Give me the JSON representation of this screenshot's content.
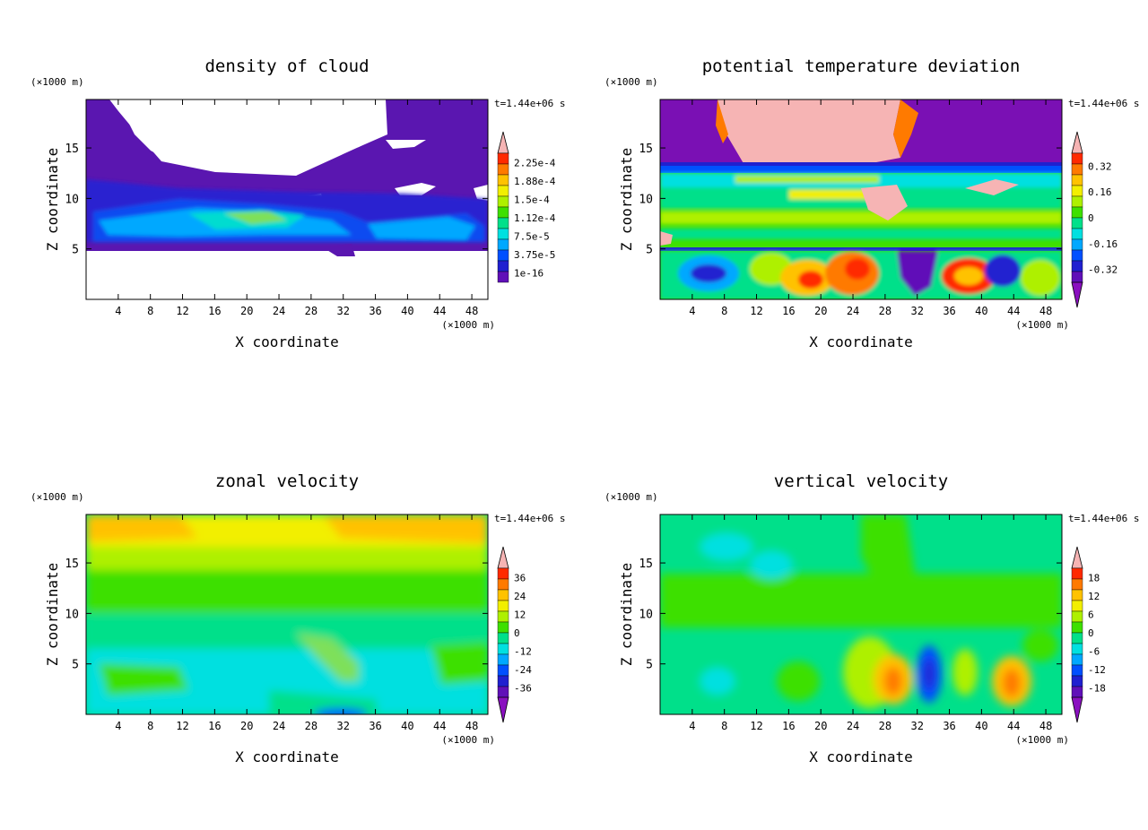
{
  "chart_data": [
    {
      "type": "heatmap",
      "title": "density of cloud",
      "xlabel": "X coordinate",
      "ylabel": "Z coordinate",
      "x_unit": "(×1000 m)",
      "y_unit": "(×1000 m)",
      "time_label": "t=1.44e+06 s",
      "xlim": [
        0,
        50
      ],
      "ylim": [
        0,
        19.8
      ],
      "xticks": [
        4,
        8,
        12,
        16,
        20,
        24,
        28,
        32,
        36,
        40,
        44,
        48
      ],
      "yticks": [
        5,
        10,
        15
      ],
      "colorbar": {
        "labels": [
          "2.25e-4",
          "1.88e-4",
          "1.5e-4",
          "1.12e-4",
          "7.5e-5",
          "3.75e-5",
          "1e-16"
        ],
        "colors": [
          "#f6b4b4",
          "#ff2a00",
          "#ff7a00",
          "#ffc200",
          "#f2ef00",
          "#aef000",
          "#3ee000",
          "#00e08a",
          "#00e0e0",
          "#00a8ff",
          "#0050ff",
          "#2020d0",
          "#6010b8"
        ],
        "end_arrows": "top"
      }
    },
    {
      "type": "heatmap",
      "title": "potential temperature deviation",
      "xlabel": "X coordinate",
      "ylabel": "Z coordinate",
      "x_unit": "(×1000 m)",
      "y_unit": "(×1000 m)",
      "time_label": "t=1.44e+06 s",
      "xlim": [
        0,
        50
      ],
      "ylim": [
        0,
        19.8
      ],
      "xticks": [
        4,
        8,
        12,
        16,
        20,
        24,
        28,
        32,
        36,
        40,
        44,
        48
      ],
      "yticks": [
        5,
        10,
        15
      ],
      "colorbar": {
        "labels": [
          "0.32",
          "0.16",
          "0",
          "-0.16",
          "-0.32"
        ],
        "colors": [
          "#f6b4b4",
          "#ff2a00",
          "#ff7a00",
          "#ffc200",
          "#f2ef00",
          "#aef000",
          "#3ee000",
          "#00e08a",
          "#00e0e0",
          "#00a8ff",
          "#0050ff",
          "#2020d0",
          "#6010b8"
        ],
        "end_arrows": "both"
      }
    },
    {
      "type": "heatmap",
      "title": "zonal velocity",
      "xlabel": "X coordinate",
      "ylabel": "Z coordinate",
      "x_unit": "(×1000 m)",
      "y_unit": "(×1000 m)",
      "time_label": "t=1.44e+06 s",
      "xlim": [
        0,
        50
      ],
      "ylim": [
        0,
        19.8
      ],
      "xticks": [
        4,
        8,
        12,
        16,
        20,
        24,
        28,
        32,
        36,
        40,
        44,
        48
      ],
      "yticks": [
        5,
        10,
        15
      ],
      "colorbar": {
        "labels": [
          "36",
          "24",
          "12",
          "0",
          "-12",
          "-24",
          "-36"
        ],
        "colors": [
          "#f6b4b4",
          "#ff2a00",
          "#ff7a00",
          "#ffc200",
          "#f2ef00",
          "#aef000",
          "#3ee000",
          "#00e08a",
          "#00e0e0",
          "#00a8ff",
          "#0050ff",
          "#2020d0",
          "#6010b8"
        ],
        "end_arrows": "both"
      }
    },
    {
      "type": "heatmap",
      "title": "vertical velocity",
      "xlabel": "X coordinate",
      "ylabel": "Z coordinate",
      "x_unit": "(×1000 m)",
      "y_unit": "(×1000 m)",
      "time_label": "t=1.44e+06 s",
      "xlim": [
        0,
        50
      ],
      "ylim": [
        0,
        19.8
      ],
      "xticks": [
        4,
        8,
        12,
        16,
        20,
        24,
        28,
        32,
        36,
        40,
        44,
        48
      ],
      "yticks": [
        5,
        10,
        15
      ],
      "colorbar": {
        "labels": [
          "18",
          "12",
          "6",
          "0",
          "-6",
          "-12",
          "-18"
        ],
        "colors": [
          "#f6b4b4",
          "#ff2a00",
          "#ff7a00",
          "#ffc200",
          "#f2ef00",
          "#aef000",
          "#3ee000",
          "#00e08a",
          "#00e0e0",
          "#00a8ff",
          "#0050ff",
          "#2020d0",
          "#6010b8"
        ],
        "end_arrows": "both"
      }
    }
  ]
}
